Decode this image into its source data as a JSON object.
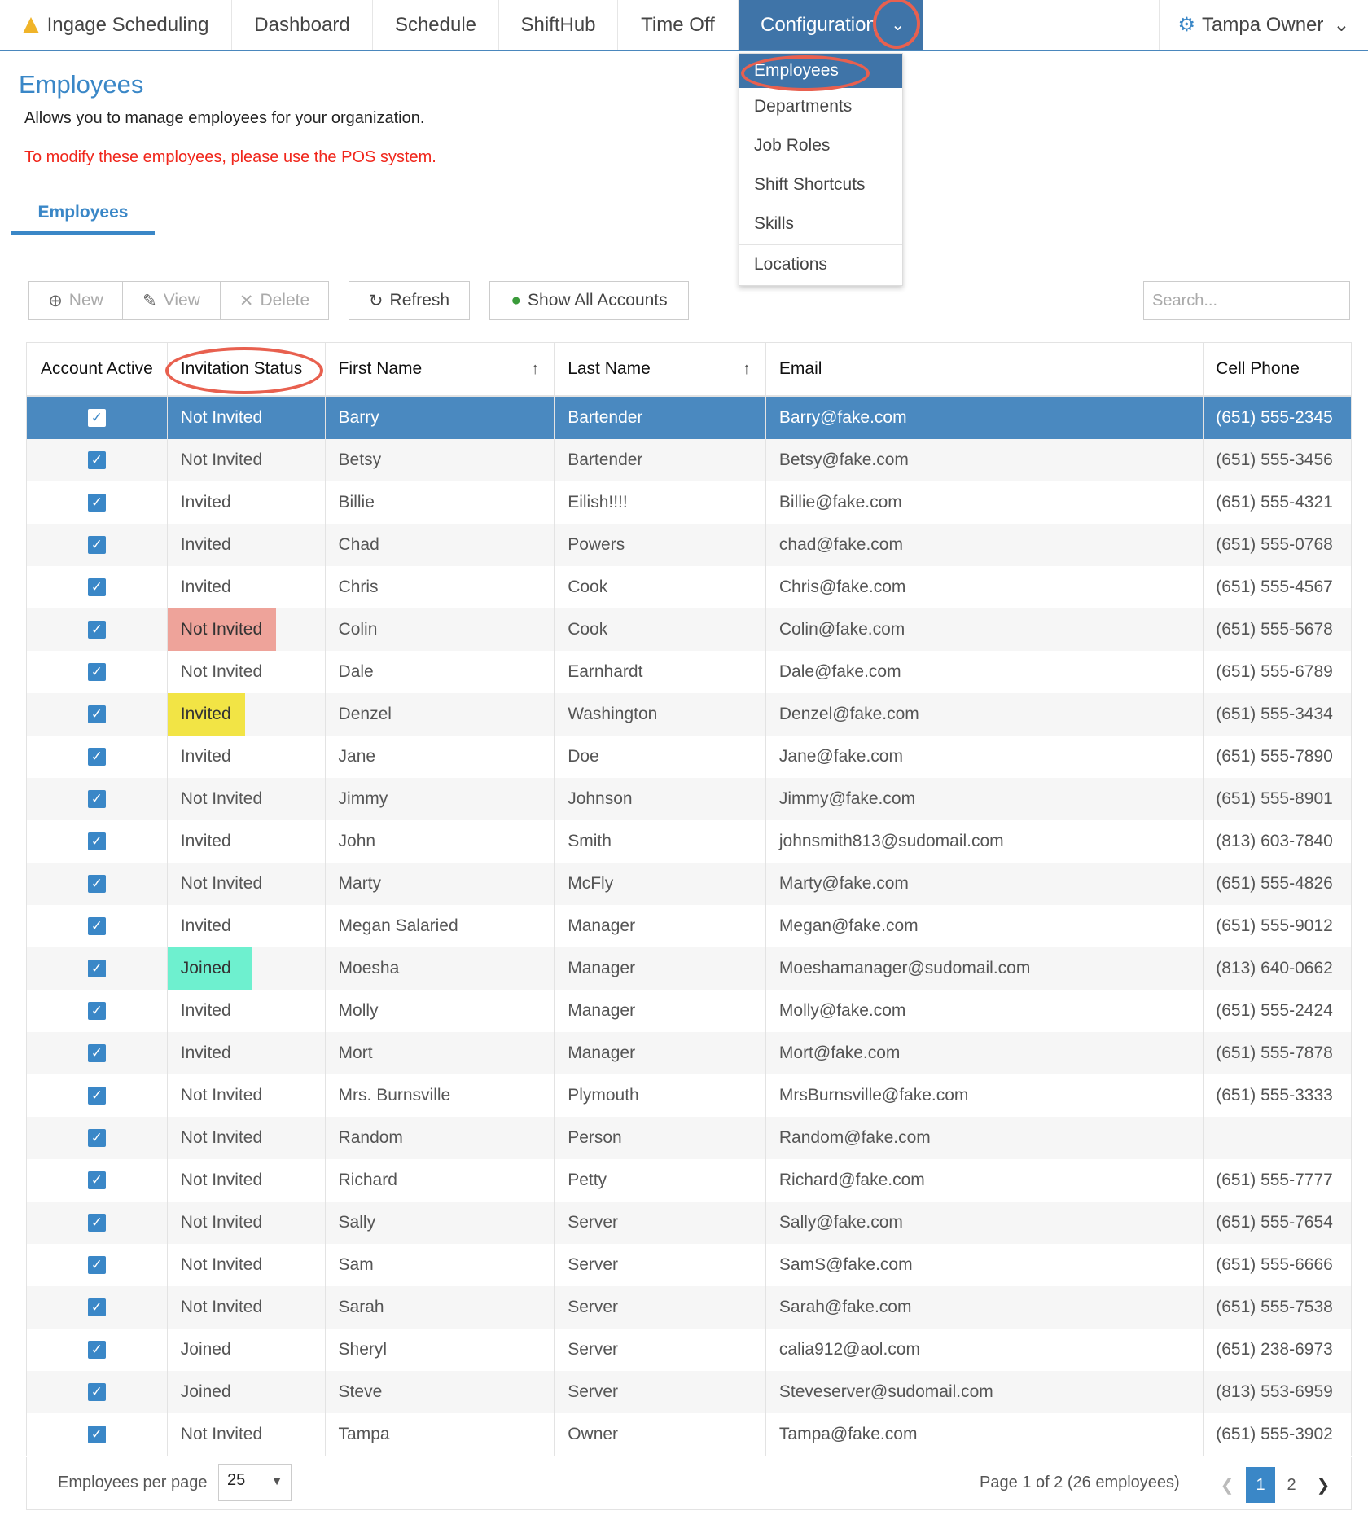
{
  "nav": {
    "brand": "Ingage Scheduling",
    "items": [
      "Dashboard",
      "Schedule",
      "ShiftHub",
      "Time Off",
      "Configuration"
    ],
    "user": "Tampa Owner"
  },
  "dropdown": [
    "Employees",
    "Departments",
    "Job Roles",
    "Shift Shortcuts",
    "Skills",
    "Locations"
  ],
  "page": {
    "title": "Employees",
    "description": "Allows you to manage employees for your organization.",
    "warning": "To modify these employees, please use the POS system.",
    "tab": "Employees"
  },
  "toolbar": {
    "new": "New",
    "view": "View",
    "delete": "Delete",
    "refresh": "Refresh",
    "show_all": "Show All Accounts",
    "search_placeholder": "Search..."
  },
  "colors": {
    "accent": "#3a87c7",
    "selected_row": "#4a89c0",
    "annotation": "#e8604f",
    "not_invited_highlight": "#eea39a",
    "invited_highlight": "#f2e445",
    "joined_highlight": "#6ef0cf"
  },
  "table": {
    "columns": [
      "Account Active",
      "Invitation Status",
      "First Name",
      "Last Name",
      "Email",
      "Cell Phone"
    ],
    "rows": [
      [
        "Not Invited",
        "Barry",
        "Bartender",
        "Barry@fake.com",
        "(651) 555-2345"
      ],
      [
        "Not Invited",
        "Betsy",
        "Bartender",
        "Betsy@fake.com",
        "(651) 555-3456"
      ],
      [
        "Invited",
        "Billie",
        "Eilish!!!!",
        "Billie@fake.com",
        "(651) 555-4321"
      ],
      [
        "Invited",
        "Chad",
        "Powers",
        "chad@fake.com",
        "(651) 555-0768"
      ],
      [
        "Invited",
        "Chris",
        "Cook",
        "Chris@fake.com",
        "(651) 555-4567"
      ],
      [
        "Not Invited",
        "Colin",
        "Cook",
        "Colin@fake.com",
        "(651) 555-5678"
      ],
      [
        "Not Invited",
        "Dale",
        "Earnhardt",
        "Dale@fake.com",
        "(651) 555-6789"
      ],
      [
        "Invited",
        "Denzel",
        "Washington",
        "Denzel@fake.com",
        "(651) 555-3434"
      ],
      [
        "Invited",
        "Jane",
        "Doe",
        "Jane@fake.com",
        "(651) 555-7890"
      ],
      [
        "Not Invited",
        "Jimmy",
        "Johnson",
        "Jimmy@fake.com",
        "(651) 555-8901"
      ],
      [
        "Invited",
        "John",
        "Smith",
        "johnsmith813@sudomail.com",
        "(813) 603-7840"
      ],
      [
        "Not Invited",
        "Marty",
        "McFly",
        "Marty@fake.com",
        "(651) 555-4826"
      ],
      [
        "Invited",
        "Megan Salaried",
        "Manager",
        "Megan@fake.com",
        "(651) 555-9012"
      ],
      [
        "Joined",
        "Moesha",
        "Manager",
        "Moeshamanager@sudomail.com",
        "(813) 640-0662"
      ],
      [
        "Invited",
        "Molly",
        "Manager",
        "Molly@fake.com",
        "(651) 555-2424"
      ],
      [
        "Invited",
        "Mort",
        "Manager",
        "Mort@fake.com",
        "(651) 555-7878"
      ],
      [
        "Not Invited",
        "Mrs. Burnsville",
        "Plymouth",
        "MrsBurnsville@fake.com",
        "(651) 555-3333"
      ],
      [
        "Not Invited",
        "Random",
        "Person",
        "Random@fake.com",
        ""
      ],
      [
        "Not Invited",
        "Richard",
        "Petty",
        "Richard@fake.com",
        "(651) 555-7777"
      ],
      [
        "Not Invited",
        "Sally",
        "Server",
        "Sally@fake.com",
        "(651) 555-7654"
      ],
      [
        "Not Invited",
        "Sam",
        "Server",
        "SamS@fake.com",
        "(651) 555-6666"
      ],
      [
        "Not Invited",
        "Sarah",
        "Server",
        "Sarah@fake.com",
        "(651) 555-7538"
      ],
      [
        "Joined",
        "Sheryl",
        "Server",
        "calia912@aol.com",
        "(651) 238-6973"
      ],
      [
        "Joined",
        "Steve",
        "Server",
        "Steveserver@sudomail.com",
        "(813) 553-6959"
      ],
      [
        "Not Invited",
        "Tampa",
        "Owner",
        "Tampa@fake.com",
        "(651) 555-3902"
      ]
    ]
  },
  "footer": {
    "per_page_label": "Employees per page",
    "per_page": "25",
    "page_info": "Page 1 of 2 (26 employees)",
    "pages": [
      "1",
      "2"
    ]
  }
}
